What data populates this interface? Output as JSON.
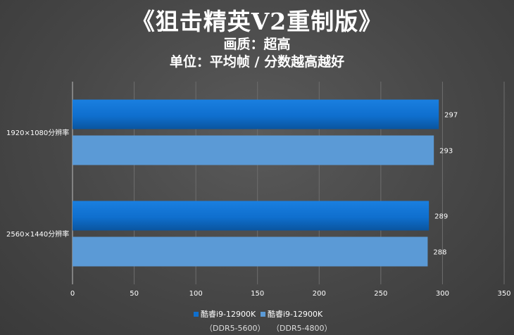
{
  "title": "《狙击精英V2重制版》",
  "subtitle1": "画质：超高",
  "subtitle2": "单位：平均帧 / 分数越高越好",
  "colors": {
    "series1": "#0f6fce",
    "series2": "#5b9ad6",
    "axis_text": "#ffffff",
    "grid": "#6e6e6e"
  },
  "legend": [
    {
      "line1": "酷睿i9-12900K",
      "line2": "（DDR5-5600）"
    },
    {
      "line1": "酷睿i9-12900K",
      "line2": "（DDR5-4800）"
    }
  ],
  "chart_data": {
    "type": "bar",
    "orientation": "horizontal",
    "categories": [
      "1920×1080分辨率",
      "2560×1440分辨率"
    ],
    "series": [
      {
        "name": "酷睿i9-12900K（DDR5-5600）",
        "values": [
          297,
          289
        ]
      },
      {
        "name": "酷睿i9-12900K（DDR5-4800）",
        "values": [
          293,
          288
        ]
      }
    ],
    "xlim": [
      0,
      350
    ],
    "xticks": [
      0,
      50,
      100,
      150,
      200,
      250,
      300,
      350
    ],
    "grid": true,
    "legend_position": "bottom"
  }
}
